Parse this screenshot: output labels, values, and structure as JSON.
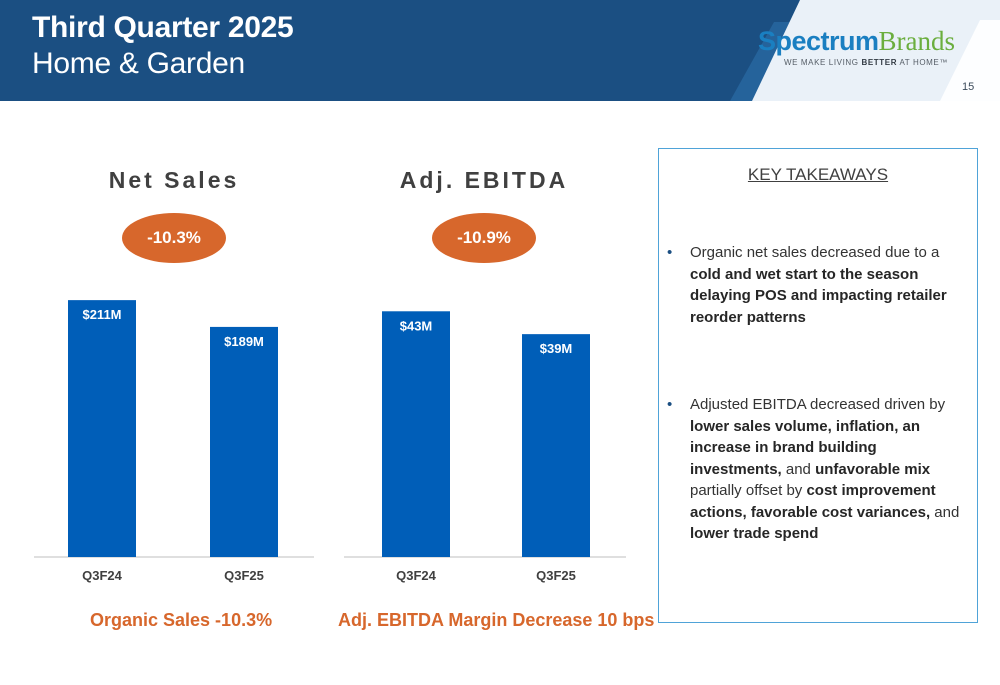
{
  "header": {
    "title_line1": "Third Quarter 2025",
    "title_line2": "Home & Garden",
    "logo_word1": "Spectrum",
    "logo_word2": "Brands",
    "logo_tag_pre": "WE MAKE LIVING ",
    "logo_tag_bold": "BETTER",
    "logo_tag_post": " AT HOME™",
    "page_number": "15",
    "colors": {
      "band": "#1b4f82",
      "logo_blue": "#1a7fc1",
      "logo_green": "#6bae3e"
    }
  },
  "chart_data": [
    {
      "type": "bar",
      "title": "Net Sales",
      "badge": "-10.3%",
      "categories": [
        "Q3F24",
        "Q3F25"
      ],
      "values": [
        211,
        189
      ],
      "data_labels": [
        "$211M",
        "$189M"
      ],
      "ylim": [
        0,
        230
      ],
      "footnote": "Organic Sales -10.3%",
      "bar_color": "#005eb8"
    },
    {
      "type": "bar",
      "title": "Adj. EBITDA",
      "badge": "-10.9%",
      "categories": [
        "Q3F24",
        "Q3F25"
      ],
      "values": [
        43,
        39
      ],
      "data_labels": [
        "$43M",
        "$39M"
      ],
      "ylim": [
        0,
        49
      ],
      "footnote": "Adj. EBITDA Margin Decrease 10 bps",
      "bar_color": "#005eb8"
    }
  ],
  "takeaways": {
    "title": "KEY TAKEAWAYS",
    "bullet_glyph": "•",
    "bullet1": [
      {
        "t": "Organic net sales decreased due to a ",
        "b": false
      },
      {
        "t": "cold and wet start to the season delaying POS and impacting retailer reorder patterns",
        "b": true
      }
    ],
    "bullet2": [
      {
        "t": "Adjusted EBITDA decreased driven by ",
        "b": false
      },
      {
        "t": "lower sales volume, inflation, an increase in brand building investments,",
        "b": true
      },
      {
        "t": " and ",
        "b": false
      },
      {
        "t": "unfavorable mix",
        "b": true
      },
      {
        "t": " partially offset by ",
        "b": false
      },
      {
        "t": "cost improvement actions, favorable cost variances,",
        "b": true
      },
      {
        "t": " and ",
        "b": false
      },
      {
        "t": "lower trade spend",
        "b": true
      }
    ]
  }
}
